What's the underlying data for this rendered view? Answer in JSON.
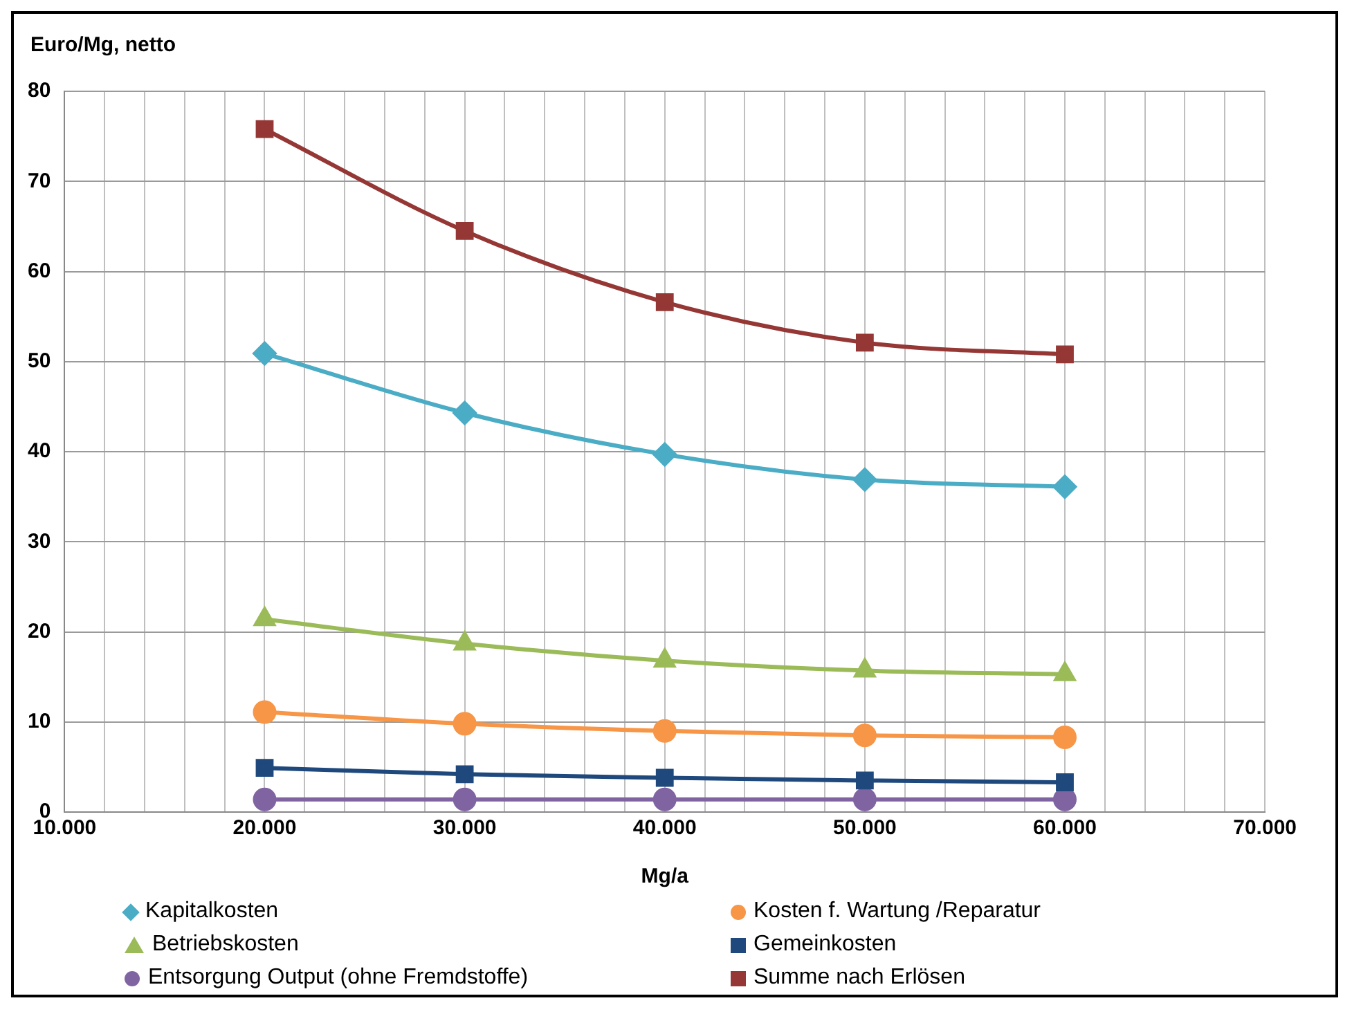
{
  "chart_data": {
    "type": "line",
    "ylabel": "Euro/Mg, netto",
    "xlabel": "Mg/a",
    "x": [
      20000,
      30000,
      40000,
      50000,
      60000
    ],
    "xlim": [
      10000,
      70000
    ],
    "xticks": [
      {
        "value": 10000,
        "label": "10.000"
      },
      {
        "value": 12000,
        "label": null
      },
      {
        "value": 14000,
        "label": null
      },
      {
        "value": 16000,
        "label": null
      },
      {
        "value": 18000,
        "label": null
      },
      {
        "value": 20000,
        "label": "20.000"
      },
      {
        "value": 22000,
        "label": null
      },
      {
        "value": 24000,
        "label": null
      },
      {
        "value": 26000,
        "label": null
      },
      {
        "value": 28000,
        "label": null
      },
      {
        "value": 30000,
        "label": "30.000"
      },
      {
        "value": 32000,
        "label": null
      },
      {
        "value": 34000,
        "label": null
      },
      {
        "value": 36000,
        "label": null
      },
      {
        "value": 38000,
        "label": null
      },
      {
        "value": 40000,
        "label": "40.000"
      },
      {
        "value": 42000,
        "label": null
      },
      {
        "value": 44000,
        "label": null
      },
      {
        "value": 46000,
        "label": null
      },
      {
        "value": 48000,
        "label": null
      },
      {
        "value": 50000,
        "label": "50.000"
      },
      {
        "value": 52000,
        "label": null
      },
      {
        "value": 54000,
        "label": null
      },
      {
        "value": 56000,
        "label": null
      },
      {
        "value": 58000,
        "label": null
      },
      {
        "value": 60000,
        "label": "60.000"
      },
      {
        "value": 62000,
        "label": null
      },
      {
        "value": 64000,
        "label": null
      },
      {
        "value": 66000,
        "label": null
      },
      {
        "value": 68000,
        "label": null
      },
      {
        "value": 70000,
        "label": "70.000"
      }
    ],
    "ylim": [
      0,
      80
    ],
    "yticks": [
      0,
      10,
      20,
      30,
      40,
      50,
      60,
      70,
      80
    ],
    "grid": true,
    "legend": "bottom",
    "series": [
      {
        "name": "Kapitalkosten",
        "color": "#4bacc6",
        "marker": "diamond",
        "values": [
          50.9,
          44.3,
          39.7,
          36.9,
          36.1
        ]
      },
      {
        "name": "Kosten f. Wartung /Reparatur",
        "color": "#f79646",
        "marker": "circle",
        "values": [
          11.1,
          9.8,
          9.0,
          8.5,
          8.3
        ]
      },
      {
        "name": "Betriebskosten",
        "color": "#9bbb59",
        "marker": "triangle",
        "values": [
          21.4,
          18.7,
          16.8,
          15.7,
          15.3
        ]
      },
      {
        "name": "Gemeinkosten",
        "color": "#1f497d",
        "marker": "square",
        "values": [
          4.9,
          4.2,
          3.8,
          3.5,
          3.3
        ]
      },
      {
        "name": "Entsorgung Output (ohne Fremdstoffe)",
        "color": "#8064a2",
        "marker": "circle",
        "values": [
          1.4,
          1.4,
          1.4,
          1.4,
          1.4
        ]
      },
      {
        "name": "Summe nach Erlösen",
        "color": "#953735",
        "marker": "square",
        "values": [
          75.8,
          64.5,
          56.6,
          52.1,
          50.8
        ]
      }
    ]
  }
}
